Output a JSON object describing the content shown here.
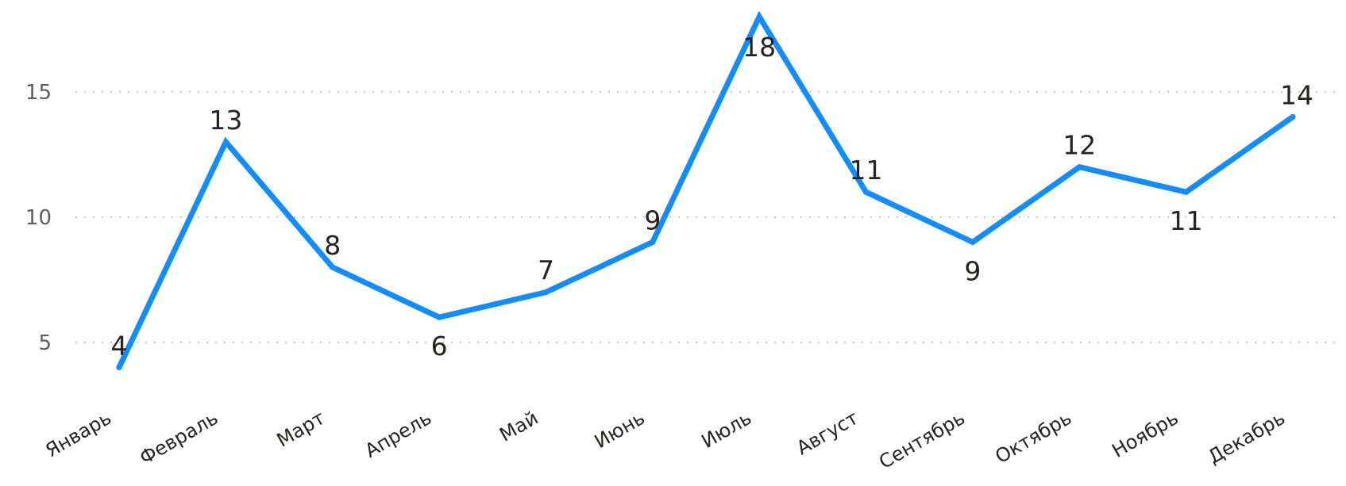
{
  "chart_data": {
    "type": "line",
    "title": "",
    "xlabel": "",
    "ylabel": "",
    "categories": [
      "Январь",
      "Февраль",
      "Март",
      "Апрель",
      "Май",
      "Июнь",
      "Июль",
      "Август",
      "Сентябрь",
      "Октябрь",
      "Ноябрь",
      "Декабрь"
    ],
    "series": [
      {
        "values": [
          4,
          13,
          8,
          6,
          7,
          9,
          18,
          11,
          9,
          12,
          11,
          14
        ],
        "color": "#118dff",
        "data_labels": [
          "4",
          "13",
          "8",
          "6",
          "7",
          "9",
          "18",
          "11",
          "9",
          "12",
          "11",
          "14"
        ]
      }
    ],
    "ylim": [
      3,
      18
    ],
    "yticks": [
      5,
      10,
      15
    ],
    "ytick_labels": [
      "5",
      "10",
      "15"
    ],
    "grid": true,
    "legend": "none"
  }
}
